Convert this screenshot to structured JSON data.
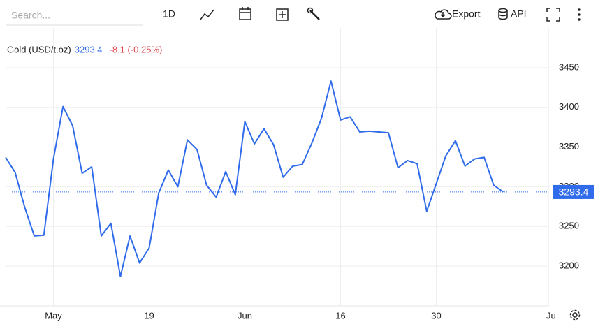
{
  "toolbar": {
    "search_placeholder": "Search...",
    "interval": "1D",
    "export": "Export",
    "api": "API"
  },
  "chart_data": {
    "type": "line",
    "change": "-8.1 (-0.25%)",
    "categories": [
      null,
      null,
      null,
      null,
      null,
      "May",
      null,
      null,
      null,
      null,
      null,
      null,
      null,
      null,
      null,
      "19",
      null,
      null,
      null,
      null,
      null,
      null,
      null,
      null,
      null,
      "Jun",
      null,
      null,
      null,
      null,
      null,
      null,
      null,
      null,
      null,
      "16",
      null,
      null,
      null,
      null,
      null,
      null,
      null,
      null,
      null,
      "30",
      null,
      null,
      null,
      null,
      null,
      null,
      null,
      null,
      null,
      null,
      null,
      "Ju"
    ],
    "series": [
      {
        "name": "Gold (USD/t.oz)",
        "color": "#2f6bea",
        "values": [
          3337,
          3318,
          3274,
          3238,
          3239,
          3335,
          3401,
          3377,
          3317,
          3325,
          3238,
          3254,
          3187,
          3238,
          3204,
          3223,
          3292,
          3321,
          3300,
          3359,
          3347,
          3302,
          3287,
          3319,
          3290,
          3382,
          3354,
          3373,
          3353,
          3312,
          3326,
          3328,
          3355,
          3386,
          3433,
          3384,
          3388,
          3369,
          3370,
          3369,
          3368,
          3324,
          3333,
          3329,
          3269,
          3304,
          3339,
          3358,
          3326,
          3335,
          3337,
          3302,
          3293.4,
          null,
          null,
          null,
          null,
          null
        ]
      }
    ],
    "ylim": [
      3150,
      3500
    ],
    "yticks": [
      3200,
      3250,
      3300,
      3350,
      3400,
      3450
    ],
    "grid": true
  }
}
